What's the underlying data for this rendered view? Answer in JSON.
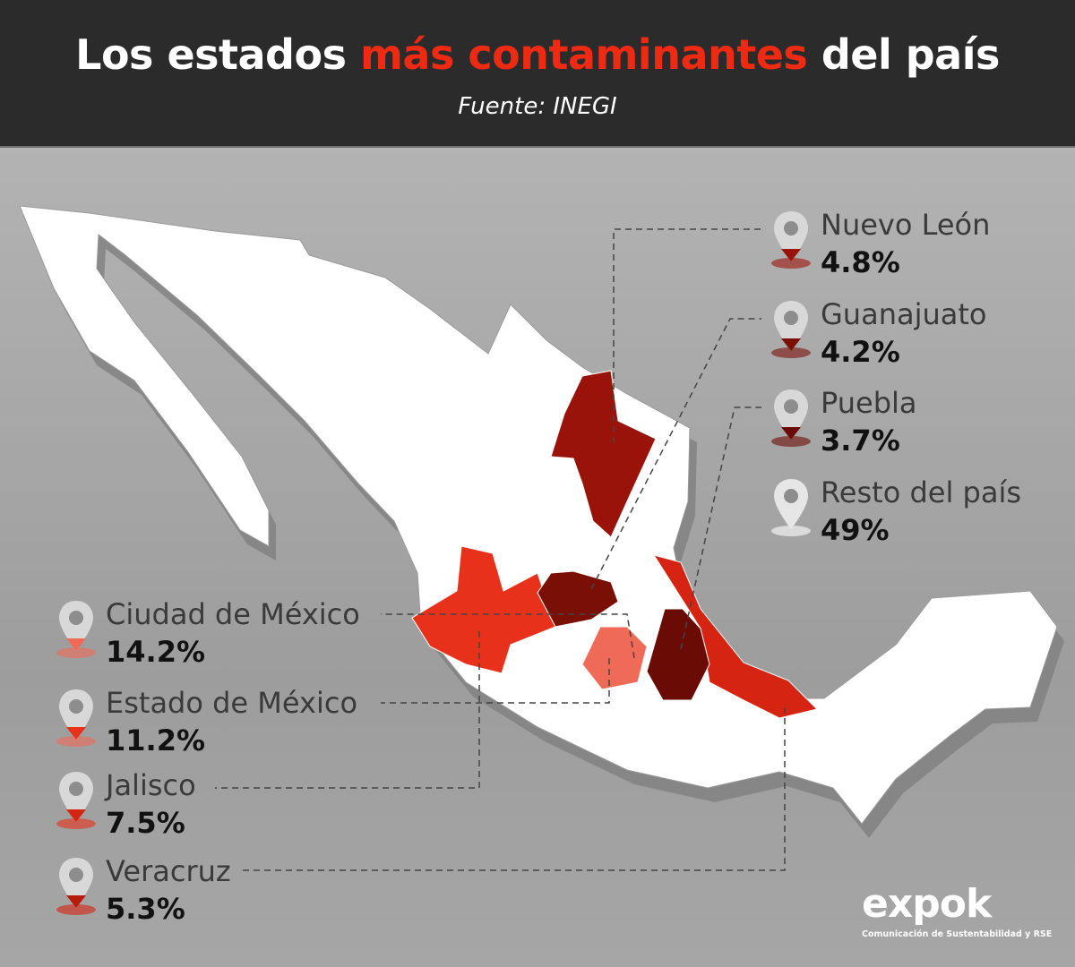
{
  "header": {
    "title_before": "Los estados ",
    "title_highlight": "más contaminantes",
    "title_after": " del país",
    "source": "Fuente: INEGI"
  },
  "colors": {
    "header_bg": "#2c2b2c",
    "highlight": "#ee2a13"
  },
  "states": [
    {
      "name": "Ciudad de México",
      "percent": "14.2%",
      "color": "#f06a58"
    },
    {
      "name": "Estado de México",
      "percent": "11.2%",
      "color": "#f06a58"
    },
    {
      "name": "Jalisco",
      "percent": "7.5%",
      "color": "#e8311a"
    },
    {
      "name": "Veracruz",
      "percent": "5.3%",
      "color": "#d52412"
    },
    {
      "name": "Nuevo León",
      "percent": "4.8%",
      "color": "#9a130a"
    },
    {
      "name": "Guanajuato",
      "percent": "4.2%",
      "color": "#7a0f06"
    },
    {
      "name": "Puebla",
      "percent": "3.7%",
      "color": "#6a0c05"
    },
    {
      "name": "Resto del país",
      "percent": "49%",
      "color": "#ffffff"
    }
  ],
  "logo": {
    "word": "expok",
    "tagline": "Comunicación de Sustentabilidad y RSE"
  }
}
